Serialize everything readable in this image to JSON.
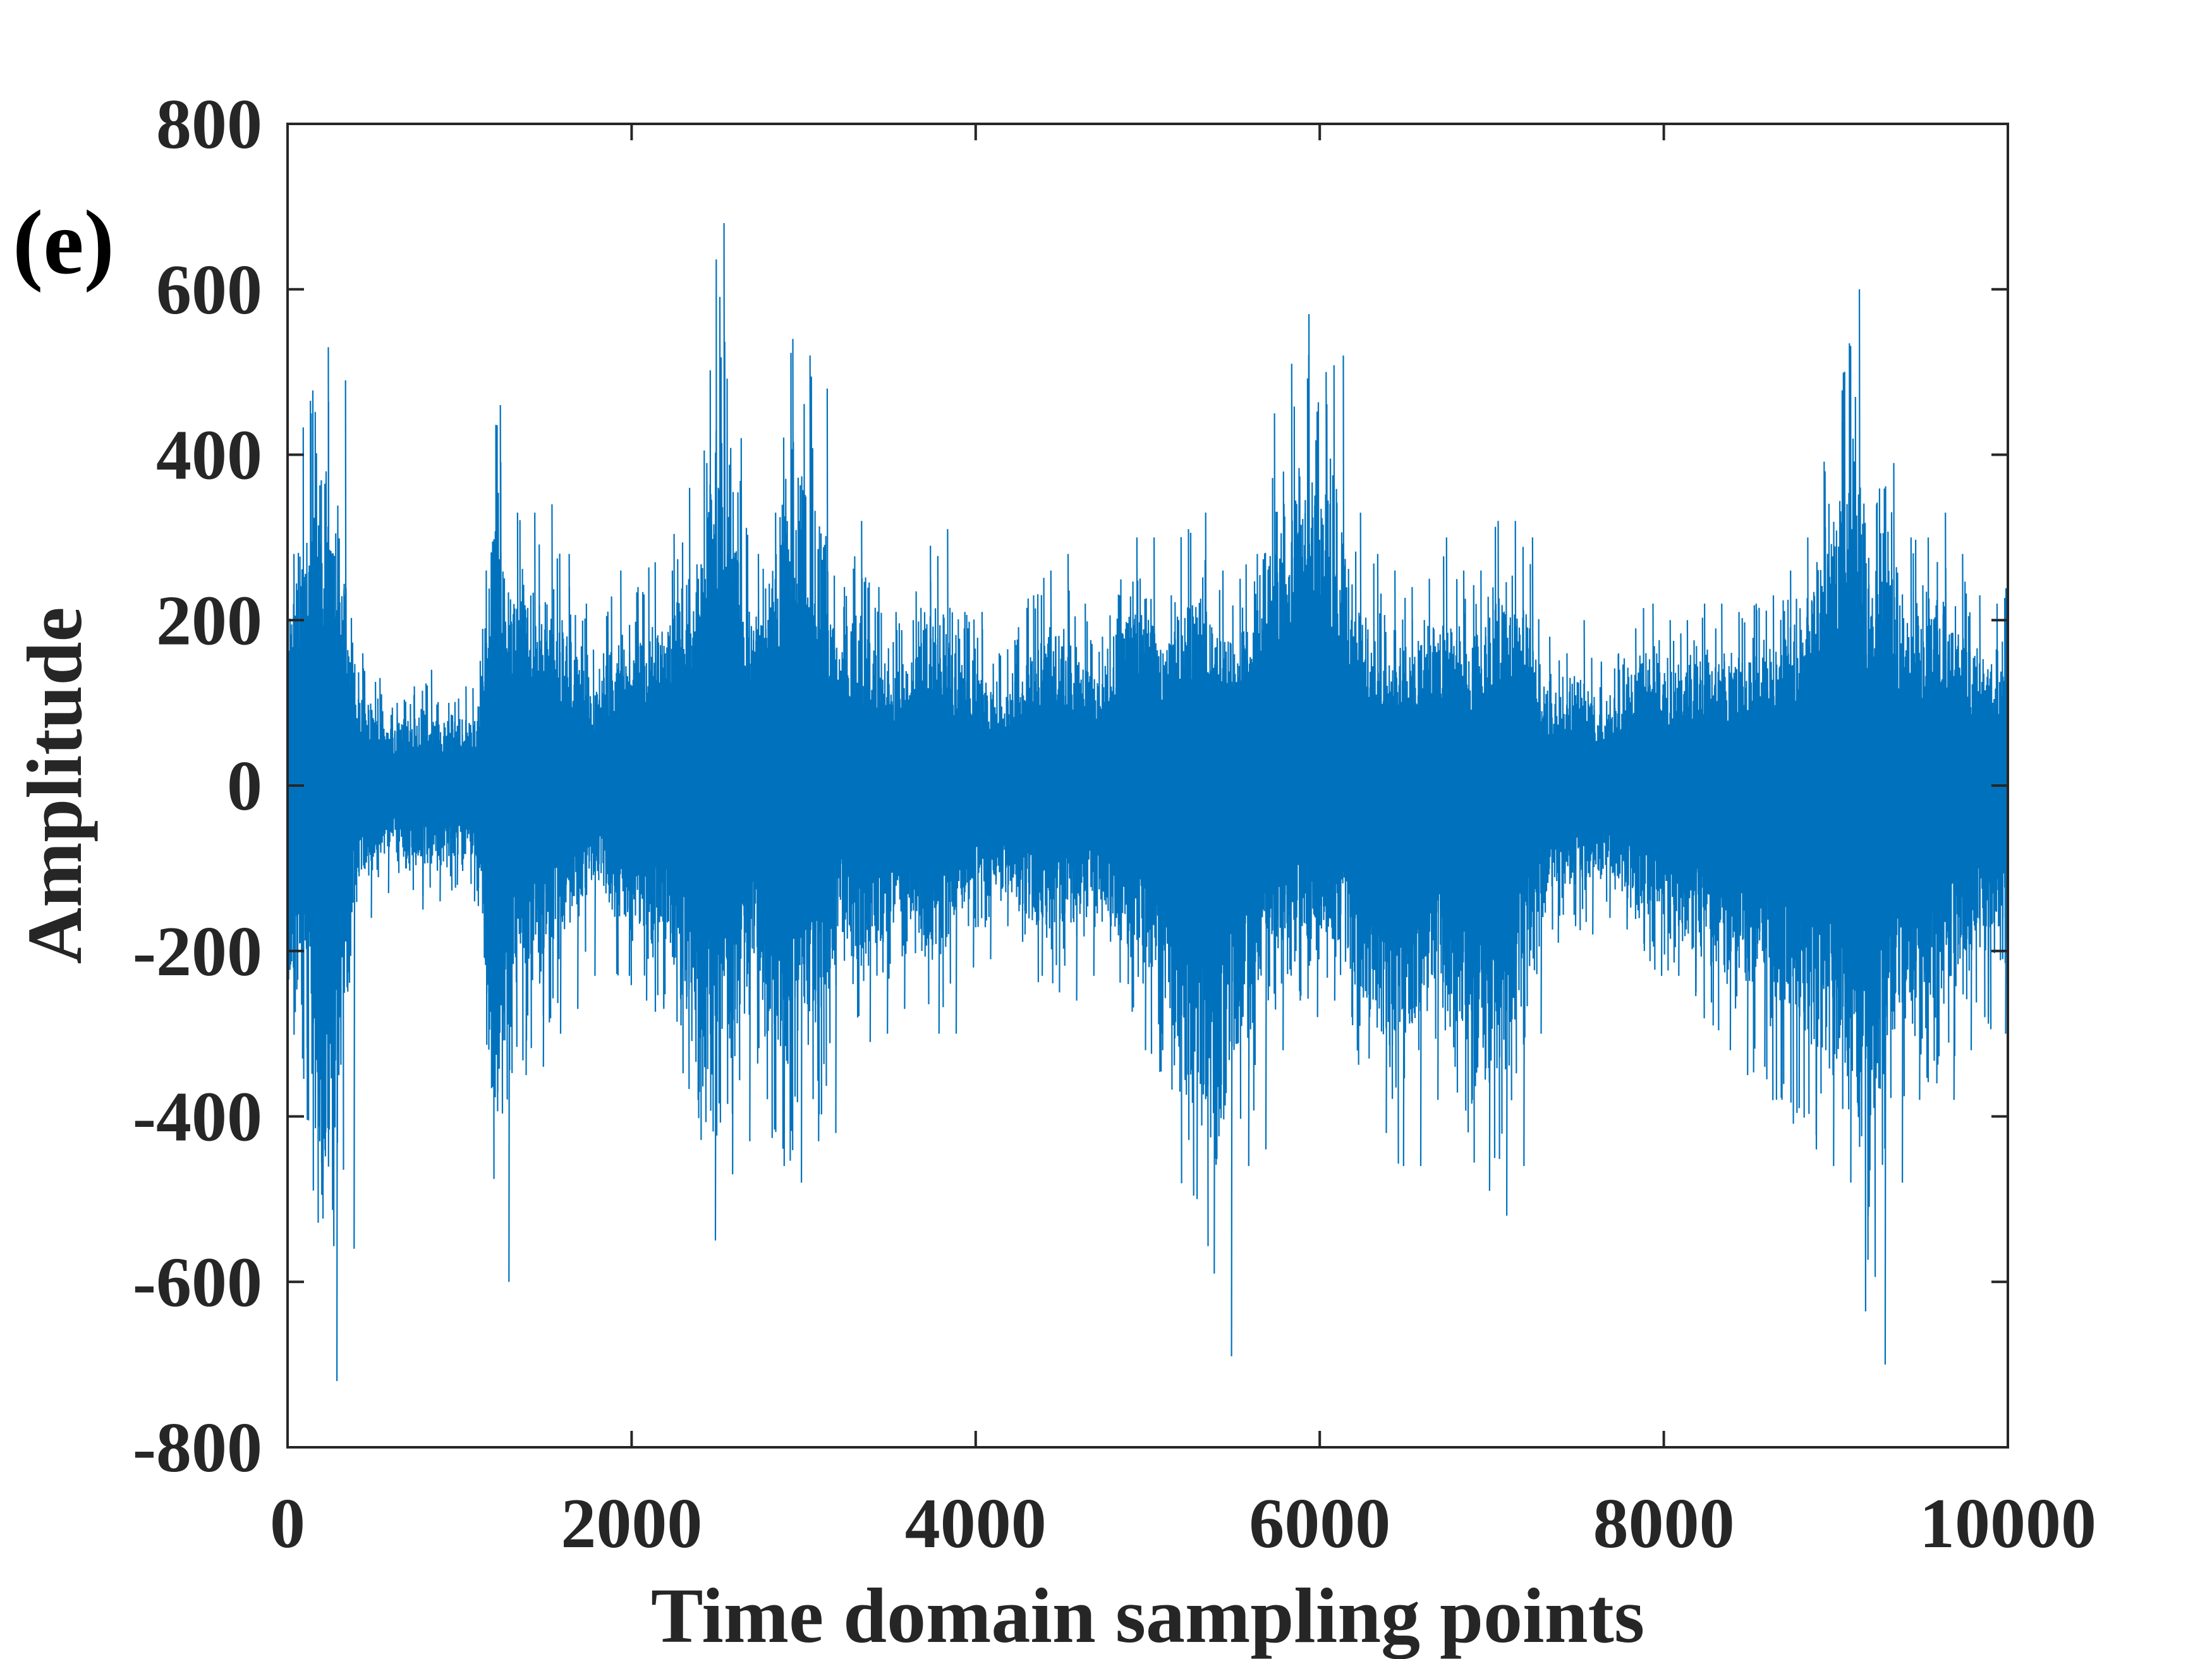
{
  "panel_label": "(e)",
  "chart_data": {
    "type": "line",
    "title": "",
    "xlabel": "Time domain sampling points",
    "ylabel": "Amplitude",
    "xlim": [
      0,
      10000
    ],
    "ylim": [
      -800,
      800
    ],
    "xticks": [
      0,
      2000,
      4000,
      6000,
      8000,
      10000
    ],
    "xtick_labels": [
      "0",
      "2000",
      "4000",
      "6000",
      "8000",
      "10000"
    ],
    "yticks": [
      800,
      600,
      400,
      200,
      0,
      -200,
      -400,
      -600,
      -800
    ],
    "ytick_labels": [
      "800",
      "600",
      "400",
      "200",
      "0",
      "-200",
      "-400",
      "-600",
      "-800"
    ],
    "grid": false,
    "line_color": "#0072BD",
    "series": [
      {
        "x_start": 0,
        "x_step": 100,
        "envelope_points": 101,
        "upper": [
          280,
          450,
          530,
          490,
          160,
          130,
          100,
          120,
          140,
          100,
          120,
          120,
          460,
          330,
          330,
          340,
          280,
          220,
          160,
          260,
          240,
          270,
          260,
          360,
          390,
          680,
          420,
          280,
          330,
          540,
          520,
          480,
          240,
          320,
          240,
          210,
          200,
          290,
          310,
          210,
          210,
          160,
          170,
          230,
          260,
          280,
          220,
          180,
          230,
          300,
          300,
          230,
          310,
          330,
          260,
          250,
          280,
          450,
          510,
          570,
          500,
          520,
          330,
          280,
          260,
          240,
          250,
          300,
          260,
          260,
          320,
          320,
          300,
          180,
          160,
          200,
          150,
          160,
          190,
          220,
          200,
          200,
          220,
          220,
          210,
          220,
          230,
          260,
          300,
          380,
          440,
          600,
          340,
          390,
          300,
          300,
          330,
          280,
          230,
          220,
          260
        ],
        "lower": [
          -330,
          -430,
          -720,
          -560,
          -160,
          -130,
          -100,
          -150,
          -140,
          -120,
          -140,
          -130,
          -600,
          -350,
          -340,
          -300,
          -270,
          -230,
          -150,
          -230,
          -260,
          -270,
          -290,
          -380,
          -550,
          -470,
          -430,
          -300,
          -460,
          -480,
          -430,
          -420,
          -240,
          -310,
          -300,
          -270,
          -200,
          -300,
          -300,
          -220,
          -210,
          -170,
          -180,
          -230,
          -250,
          -260,
          -230,
          -170,
          -240,
          -320,
          -320,
          -370,
          -500,
          -590,
          -690,
          -460,
          -440,
          -320,
          -260,
          -280,
          -260,
          -280,
          -330,
          -420,
          -460,
          -460,
          -380,
          -340,
          -380,
          -490,
          -520,
          -460,
          -300,
          -190,
          -170,
          -180,
          -160,
          -160,
          -200,
          -230,
          -230,
          -250,
          -290,
          -320,
          -350,
          -340,
          -380,
          -390,
          -440,
          -460,
          -480,
          -520,
          -700,
          -480,
          -380,
          -360,
          -380,
          -320,
          -280,
          -300,
          -300
        ]
      }
    ]
  }
}
